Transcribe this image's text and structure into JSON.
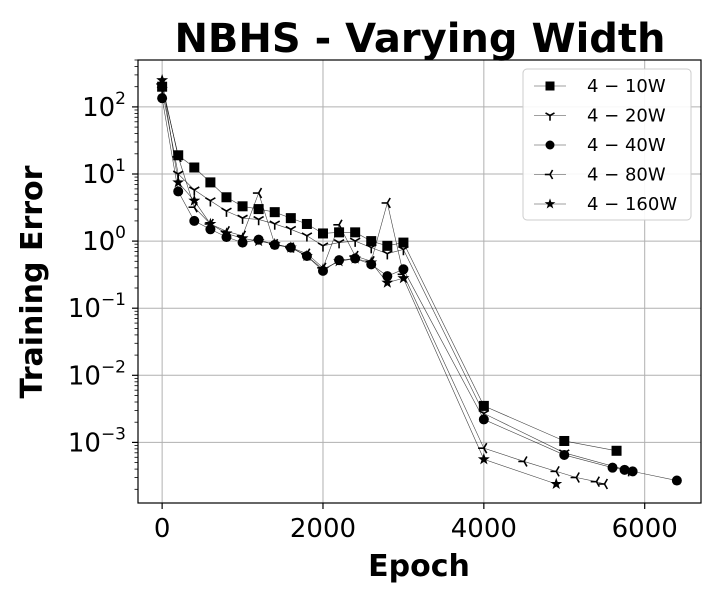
{
  "chart_data": {
    "type": "line",
    "title": "NBHS - Varying Width",
    "xlabel": "Epoch",
    "ylabel": "Training Error",
    "xlim": [
      -300,
      6700
    ],
    "ylim": [
      0.000125,
      500
    ],
    "yscale": "log",
    "grid": true,
    "legend_position": "top-right",
    "x_ticks": [
      0,
      2000,
      4000,
      6000
    ],
    "y_ticks": [
      {
        "value": 0.001,
        "base": "10",
        "exp": "−3"
      },
      {
        "value": 0.01,
        "base": "10",
        "exp": "−2"
      },
      {
        "value": 0.1,
        "base": "10",
        "exp": "−1"
      },
      {
        "value": 1,
        "base": "10",
        "exp": "0"
      },
      {
        "value": 10,
        "base": "10",
        "exp": "1"
      },
      {
        "value": 100,
        "base": "10",
        "exp": "2"
      }
    ],
    "series": [
      {
        "name": "4 − 10W",
        "marker": "square",
        "x": [
          0,
          200,
          400,
          600,
          800,
          1000,
          1200,
          1400,
          1600,
          1800,
          2000,
          2200,
          2400,
          2600,
          2800,
          3000,
          4000,
          5000,
          5650
        ],
        "y": [
          200,
          19,
          12.5,
          7.5,
          4.5,
          3.3,
          3.0,
          2.7,
          2.2,
          1.8,
          1.3,
          1.35,
          1.35,
          1.0,
          0.85,
          0.95,
          0.0035,
          0.00105,
          0.00075
        ]
      },
      {
        "name": "4 − 20W",
        "marker": "tri_down",
        "x": [
          0,
          200,
          400,
          600,
          800,
          1000,
          1200,
          1400,
          1600,
          1800,
          2000,
          2200,
          2400,
          2600,
          2800,
          3000,
          4000,
          5000,
          5800
        ],
        "y": [
          180,
          10,
          5.8,
          4.0,
          2.8,
          2.2,
          2.1,
          1.8,
          1.5,
          1.2,
          0.85,
          0.95,
          1.0,
          0.8,
          0.65,
          0.75,
          0.0027,
          0.0007,
          0.00038
        ]
      },
      {
        "name": "4 − 40W",
        "marker": "circle",
        "x": [
          0,
          200,
          400,
          600,
          800,
          1000,
          1200,
          1400,
          1600,
          1800,
          2000,
          2200,
          2400,
          2600,
          2800,
          3000,
          4000,
          5000,
          5600,
          5750,
          5850,
          6400
        ],
        "y": [
          135,
          5.5,
          2.0,
          1.5,
          1.15,
          0.95,
          1.05,
          0.88,
          0.8,
          0.6,
          0.36,
          0.52,
          0.55,
          0.45,
          0.3,
          0.38,
          0.0022,
          0.00065,
          0.00042,
          0.00039,
          0.00037,
          0.00027
        ]
      },
      {
        "name": "4 − 80W",
        "marker": "tri_left",
        "x": [
          0,
          200,
          400,
          600,
          800,
          1000,
          1200,
          1400,
          1600,
          1800,
          2000,
          2200,
          2400,
          2600,
          2800,
          3000,
          4000,
          4500,
          4900,
          5150,
          5400,
          5500
        ],
        "y": [
          220,
          18,
          3.2,
          1.8,
          1.4,
          1.2,
          5.2,
          0.9,
          0.8,
          0.65,
          0.4,
          1.75,
          0.6,
          0.5,
          3.7,
          0.32,
          0.00082,
          0.00052,
          0.00037,
          0.0003,
          0.00026,
          0.00024
        ]
      },
      {
        "name": "4 − 160W",
        "marker": "star",
        "x": [
          0,
          200,
          400,
          600,
          800,
          1000,
          1200,
          1400,
          1600,
          1800,
          2000,
          2200,
          2400,
          2600,
          2800,
          3000,
          4000,
          4900
        ],
        "y": [
          250,
          7.5,
          4.0,
          1.8,
          1.3,
          1.1,
          1.0,
          0.9,
          0.8,
          0.6,
          0.38,
          0.5,
          0.55,
          0.48,
          0.24,
          0.28,
          0.00056,
          0.00024
        ]
      }
    ]
  }
}
